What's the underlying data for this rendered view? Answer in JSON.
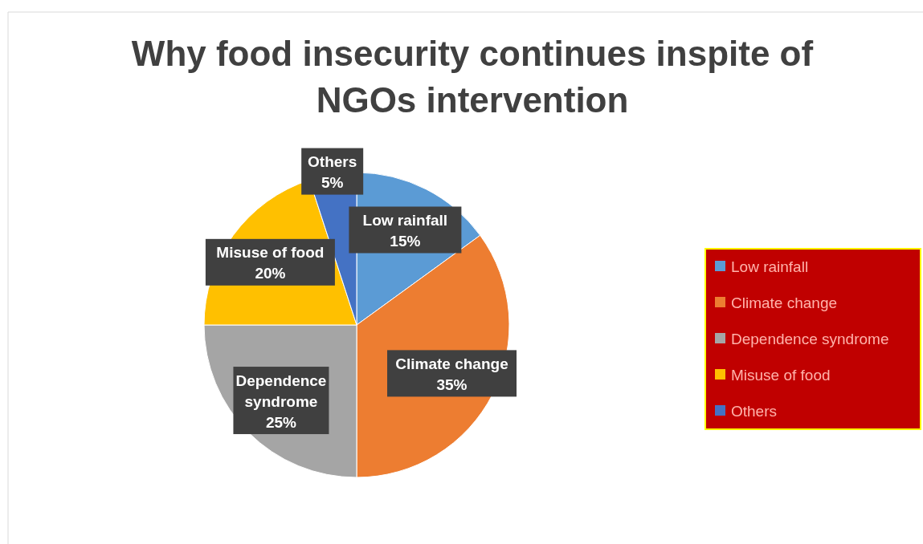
{
  "chart_data": {
    "type": "pie",
    "title": "Why food insecurity continues inspite of NGOs intervention",
    "categories": [
      "Low rainfall",
      "Climate change",
      "Dependence syndrome",
      "Misuse of food",
      "Others"
    ],
    "values": [
      15,
      35,
      25,
      20,
      5
    ],
    "value_labels": [
      "15%",
      "35%",
      "25%",
      "20%",
      "5%"
    ],
    "colors": [
      "#5b9bd5",
      "#ed7d31",
      "#a5a5a5",
      "#ffc000",
      "#4472c4"
    ],
    "legend": "right"
  }
}
